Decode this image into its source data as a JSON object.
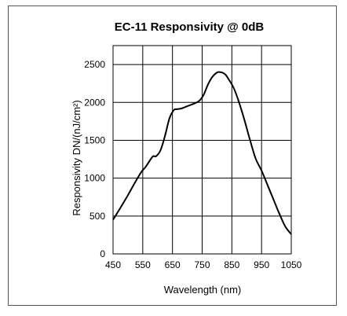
{
  "chart_data": {
    "type": "line",
    "title": "EC-11 Responsivity @ 0dB",
    "xlabel": "Wavelength (nm)",
    "ylabel": "Responsivity DN/(nJ/cm²)",
    "xlim": [
      450,
      1050
    ],
    "ylim": [
      0,
      2750
    ],
    "xticks": [
      450,
      550,
      650,
      750,
      850,
      950,
      1050
    ],
    "xtick_labels": [
      "450",
      "550",
      "650",
      "750",
      "850",
      "950",
      "1050"
    ],
    "yticks": [
      0,
      500,
      1000,
      1500,
      2000,
      2500
    ],
    "ytick_labels": [
      "0",
      "500",
      "1000",
      "1500",
      "2000",
      "2500"
    ],
    "grid": true,
    "legend": "none",
    "series": [
      {
        "color": "#000000",
        "x": [
          450,
          475,
          500,
          525,
          545,
          560,
          575,
          585,
          595,
          610,
          625,
          640,
          655,
          665,
          680,
          700,
          720,
          740,
          755,
          770,
          785,
          800,
          810,
          820,
          830,
          840,
          855,
          870,
          890,
          910,
          930,
          950,
          970,
          990,
          1010,
          1030,
          1050
        ],
        "y": [
          450,
          610,
          775,
          950,
          1080,
          1150,
          1240,
          1290,
          1290,
          1370,
          1560,
          1790,
          1900,
          1910,
          1920,
          1950,
          1980,
          2020,
          2100,
          2240,
          2340,
          2395,
          2400,
          2390,
          2360,
          2300,
          2200,
          2050,
          1800,
          1520,
          1260,
          1100,
          910,
          720,
          530,
          360,
          260
        ]
      }
    ]
  }
}
